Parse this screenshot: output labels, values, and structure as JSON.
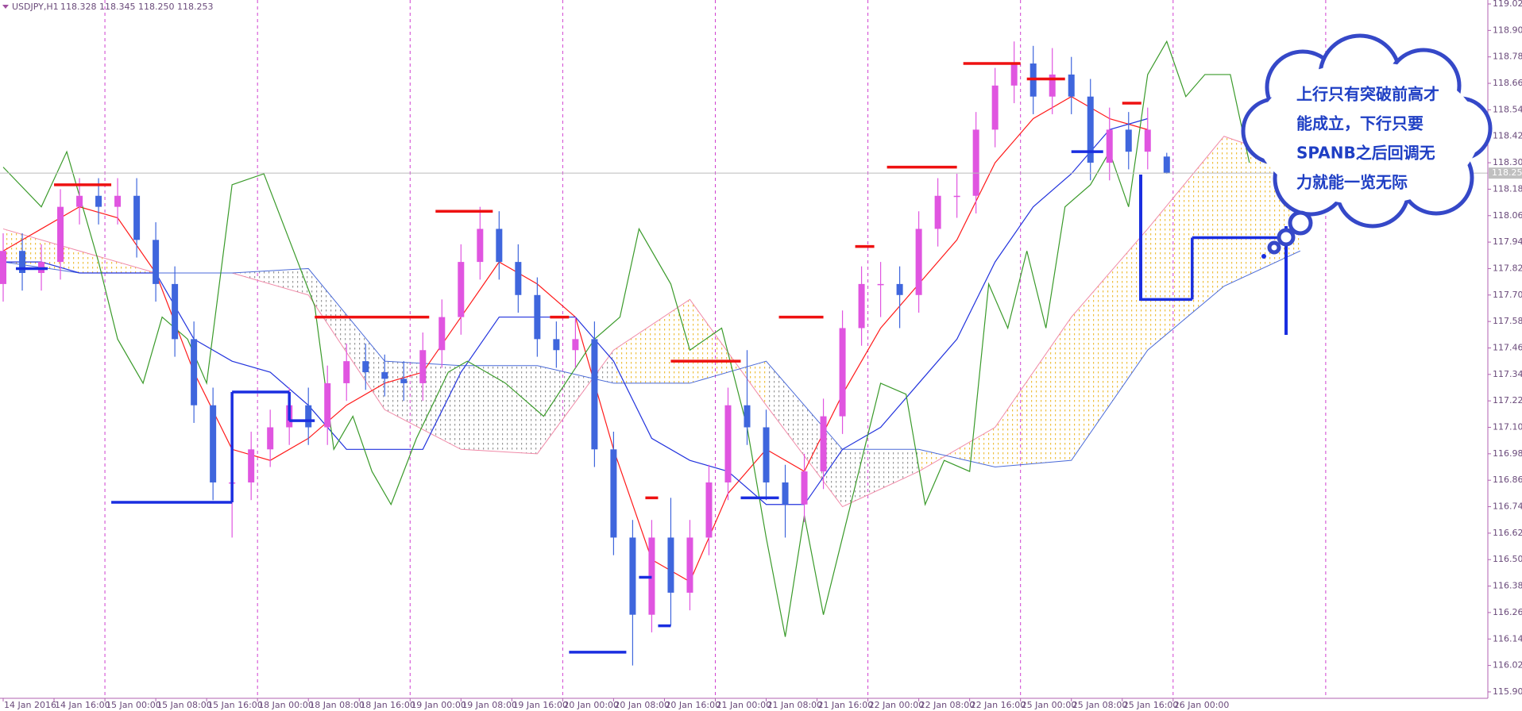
{
  "chart_data": {
    "type": "candlestick",
    "title": "USDJPY,H1",
    "ohlc_text": "118.328 118.345 118.250 118.253",
    "xlim": [
      -0.5,
      233.5
    ],
    "ylim": [
      115.871,
      119.038
    ],
    "x": [
      0,
      3,
      6,
      9,
      12,
      15,
      18,
      21,
      24,
      27,
      30,
      33,
      36,
      39,
      42,
      45,
      48,
      51,
      54,
      57,
      60,
      63,
      66,
      69,
      72,
      75,
      78,
      81,
      84,
      87,
      90,
      93,
      96,
      99,
      102,
      105,
      108,
      111,
      114,
      117,
      120,
      123,
      126,
      129,
      132,
      135,
      138,
      141,
      144,
      147,
      150,
      153,
      156,
      159,
      162,
      165,
      168,
      171,
      174,
      177,
      180,
      183
    ],
    "open": [
      117.75,
      117.9,
      117.8,
      117.85,
      118.1,
      118.15,
      118.1,
      118.15,
      117.95,
      117.75,
      117.5,
      117.2,
      116.85,
      116.85,
      117.0,
      117.1,
      117.2,
      117.1,
      117.3,
      117.4,
      117.35,
      117.32,
      117.3,
      117.45,
      117.6,
      117.85,
      118.0,
      117.85,
      117.7,
      117.5,
      117.45,
      117.5,
      117.0,
      116.6,
      116.25,
      116.6,
      116.35,
      116.6,
      116.85,
      117.2,
      117.1,
      116.85,
      116.75,
      116.9,
      117.15,
      117.55,
      117.75,
      117.75,
      117.7,
      118.0,
      118.15,
      118.15,
      118.45,
      118.65,
      118.75,
      118.6,
      118.7,
      118.6,
      118.3,
      118.45,
      118.35,
      118.328
    ],
    "high": [
      117.98,
      117.98,
      117.93,
      118.18,
      118.23,
      118.23,
      118.23,
      118.23,
      118.03,
      117.83,
      117.58,
      117.28,
      116.93,
      117.08,
      117.18,
      117.28,
      117.28,
      117.38,
      117.48,
      117.48,
      117.43,
      117.4,
      117.53,
      117.68,
      117.93,
      118.1,
      118.08,
      117.93,
      117.78,
      117.58,
      117.6,
      117.58,
      117.08,
      116.68,
      116.68,
      116.78,
      116.68,
      116.93,
      117.28,
      117.45,
      117.18,
      116.93,
      116.98,
      117.23,
      117.63,
      117.83,
      117.85,
      117.83,
      118.08,
      118.23,
      118.25,
      118.53,
      118.73,
      118.85,
      118.83,
      118.82,
      118.78,
      118.68,
      118.55,
      118.53,
      118.55,
      118.345
    ],
    "low": [
      117.67,
      117.72,
      117.72,
      117.77,
      118.02,
      118.02,
      118.02,
      117.87,
      117.67,
      117.42,
      117.12,
      116.77,
      116.6,
      116.77,
      116.92,
      117.02,
      117.02,
      117.02,
      117.22,
      117.27,
      117.24,
      117.22,
      117.22,
      117.37,
      117.52,
      117.77,
      117.77,
      117.62,
      117.42,
      117.37,
      117.37,
      116.92,
      116.52,
      116.02,
      116.17,
      116.2,
      116.27,
      116.52,
      116.77,
      117.02,
      116.77,
      116.6,
      116.67,
      116.82,
      117.07,
      117.47,
      117.6,
      117.55,
      117.62,
      117.92,
      118.05,
      118.07,
      118.37,
      118.57,
      118.52,
      118.52,
      118.52,
      118.22,
      118.22,
      118.27,
      118.27,
      118.25
    ],
    "close": [
      117.9,
      117.8,
      117.85,
      118.1,
      118.15,
      118.1,
      118.15,
      117.95,
      117.75,
      117.5,
      117.2,
      116.85,
      116.85,
      117.0,
      117.1,
      117.2,
      117.1,
      117.3,
      117.4,
      117.35,
      117.32,
      117.3,
      117.45,
      117.6,
      117.85,
      118.0,
      117.85,
      117.7,
      117.5,
      117.45,
      117.5,
      117.0,
      116.6,
      116.25,
      116.6,
      116.35,
      116.6,
      116.85,
      117.2,
      117.1,
      116.85,
      116.75,
      116.9,
      117.15,
      117.55,
      117.75,
      117.75,
      117.7,
      118.0,
      118.15,
      118.15,
      118.45,
      118.65,
      118.75,
      118.6,
      118.7,
      118.6,
      118.3,
      118.45,
      118.35,
      118.45,
      118.253
    ],
    "bull_color": "#e055e0",
    "bear_color": "#3f66dd",
    "lines": [
      {
        "color": "#ff1a1a",
        "x": [
          0,
          6,
          12,
          18,
          24,
          30,
          36,
          42,
          48,
          54,
          60,
          66,
          72,
          78,
          84,
          90,
          96,
          102,
          108,
          114,
          120,
          126,
          132,
          138,
          144,
          150,
          156,
          162,
          168,
          174,
          180
        ],
        "values": [
          117.9,
          118.0,
          118.1,
          118.05,
          117.8,
          117.35,
          117.0,
          116.95,
          117.05,
          117.2,
          117.3,
          117.35,
          117.6,
          117.85,
          117.75,
          117.6,
          117.0,
          116.5,
          116.4,
          116.8,
          117.0,
          116.9,
          117.25,
          117.55,
          117.75,
          117.95,
          118.3,
          118.5,
          118.6,
          118.5,
          118.45
        ]
      },
      {
        "color": "#2233dd",
        "x": [
          0,
          6,
          12,
          18,
          24,
          30,
          36,
          42,
          48,
          54,
          60,
          66,
          72,
          78,
          84,
          90,
          96,
          102,
          108,
          114,
          120,
          126,
          132,
          138,
          144,
          150,
          156,
          162,
          168,
          174,
          180
        ],
        "values": [
          117.85,
          117.85,
          117.8,
          117.8,
          117.8,
          117.5,
          117.4,
          117.35,
          117.2,
          117.0,
          117.0,
          117.0,
          117.35,
          117.6,
          117.6,
          117.6,
          117.4,
          117.05,
          116.95,
          116.9,
          116.75,
          116.75,
          117.0,
          117.1,
          117.3,
          117.5,
          117.85,
          118.1,
          118.25,
          118.45,
          118.5
        ]
      },
      {
        "color": "#3a9a2a",
        "x": [
          0,
          6,
          10,
          15,
          18,
          22,
          25,
          29,
          32,
          36,
          41,
          45,
          49,
          52,
          55,
          58,
          61,
          65,
          70,
          73,
          79,
          85,
          93,
          97,
          100,
          105,
          108,
          113,
          117,
          120,
          123,
          126,
          129,
          132,
          135,
          138,
          142,
          145,
          148,
          152,
          155,
          158,
          161,
          164,
          167,
          171,
          174,
          177,
          180,
          183,
          186,
          189,
          193,
          196
        ],
        "values": [
          118.28,
          118.1,
          118.35,
          117.85,
          117.5,
          117.3,
          117.6,
          117.5,
          117.3,
          118.2,
          118.25,
          117.95,
          117.65,
          117.0,
          117.15,
          116.9,
          116.75,
          117.05,
          117.35,
          117.4,
          117.3,
          117.15,
          117.5,
          117.6,
          118.0,
          117.75,
          117.45,
          117.55,
          117.1,
          116.6,
          116.15,
          116.7,
          116.25,
          116.6,
          116.95,
          117.3,
          117.25,
          116.75,
          116.95,
          116.9,
          117.75,
          117.55,
          117.9,
          117.55,
          118.1,
          118.2,
          118.35,
          118.1,
          118.7,
          118.85,
          118.6,
          118.7,
          118.7,
          118.3
        ]
      }
    ],
    "cloud": {
      "x": [
        0,
        12,
        24,
        36,
        48,
        60,
        72,
        84,
        96,
        108,
        120,
        132,
        144,
        156,
        168,
        180,
        192,
        204
      ],
      "span_a": [
        118.0,
        117.9,
        117.8,
        117.8,
        117.7,
        117.18,
        117.0,
        116.98,
        117.45,
        117.68,
        117.2,
        116.74,
        116.9,
        117.1,
        117.6,
        118.0,
        118.42,
        118.3
      ],
      "span_b": [
        117.85,
        117.8,
        117.8,
        117.8,
        117.82,
        117.4,
        117.38,
        117.38,
        117.3,
        117.3,
        117.4,
        117.0,
        117.0,
        116.92,
        116.95,
        117.45,
        117.74,
        117.9
      ],
      "span_a_color": "#f08aa8",
      "span_b_color": "#4a6ad8",
      "up_fill": "#f2cc55",
      "down_fill": "#9a9a9a"
    },
    "levels": [
      {
        "color": "#ee1111",
        "segments": [
          {
            "x": [
              8,
              17
            ],
            "value": 118.2
          },
          {
            "x": [
              49,
              67
            ],
            "value": 117.6
          },
          {
            "x": [
              68,
              77
            ],
            "value": 118.08
          },
          {
            "x": [
              86,
              89
            ],
            "value": 117.6
          },
          {
            "x": [
              101,
              103
            ],
            "value": 116.78
          },
          {
            "x": [
              105,
              116
            ],
            "value": 117.4
          },
          {
            "x": [
              122,
              129
            ],
            "value": 117.6
          },
          {
            "x": [
              134,
              137
            ],
            "value": 117.92
          },
          {
            "x": [
              139,
              150
            ],
            "value": 118.28
          },
          {
            "x": [
              151,
              160
            ],
            "value": 118.75
          },
          {
            "x": [
              161,
              167
            ],
            "value": 118.68
          },
          {
            "x": [
              176,
              179
            ],
            "value": 118.57
          }
        ]
      },
      {
        "color": "#1a2ee0",
        "segments": [
          {
            "x": [
              2,
              7
            ],
            "value": 117.82
          },
          {
            "x": [
              17,
              36
            ],
            "value": 116.76
          },
          {
            "x": [
              36,
              45
            ],
            "value": 117.26
          },
          {
            "x": [
              45,
              49
            ],
            "value": 117.13
          },
          {
            "x": [
              89,
              98
            ],
            "value": 116.08
          },
          {
            "x": [
              100,
              102
            ],
            "value": 116.42
          },
          {
            "x": [
              103,
              105
            ],
            "value": 116.2
          },
          {
            "x": [
              116,
              122
            ],
            "value": 116.78
          },
          {
            "x": [
              168,
              173
            ],
            "value": 118.35
          },
          {
            "x": [
              179,
              187
            ],
            "value": 117.68
          },
          {
            "x": [
              187,
              202
            ],
            "value": 117.96
          }
        ]
      }
    ],
    "price_line": 118.253,
    "period_separators": [
      16,
      40,
      64,
      88,
      112,
      136,
      160,
      184,
      208
    ],
    "xticks": [
      {
        "value": 0,
        "label": "14 Jan 2016"
      },
      {
        "value": 8,
        "label": "14 Jan 16:00"
      },
      {
        "value": 16,
        "label": "15 Jan 00:00"
      },
      {
        "value": 24,
        "label": "15 Jan 08:00"
      },
      {
        "value": 32,
        "label": "15 Jan 16:00"
      },
      {
        "value": 40,
        "label": "18 Jan 00:00"
      },
      {
        "value": 48,
        "label": "18 Jan 08:00"
      },
      {
        "value": 56,
        "label": "18 Jan 16:00"
      },
      {
        "value": 64,
        "label": "19 Jan 00:00"
      },
      {
        "value": 72,
        "label": "19 Jan 08:00"
      },
      {
        "value": 80,
        "label": "19 Jan 16:00"
      },
      {
        "value": 88,
        "label": "20 Jan 00:00"
      },
      {
        "value": 96,
        "label": "20 Jan 08:00"
      },
      {
        "value": 104,
        "label": "20 Jan 16:00"
      },
      {
        "value": 112,
        "label": "21 Jan 00:00"
      },
      {
        "value": 120,
        "label": "21 Jan 08:00"
      },
      {
        "value": 128,
        "label": "21 Jan 16:00"
      },
      {
        "value": 136,
        "label": "22 Jan 00:00"
      },
      {
        "value": 144,
        "label": "22 Jan 08:00"
      },
      {
        "value": 152,
        "label": "22 Jan 16:00"
      },
      {
        "value": 160,
        "label": "25 Jan 00:00"
      },
      {
        "value": 168,
        "label": "25 Jan 08:00"
      },
      {
        "value": 176,
        "label": "25 Jan 16:00"
      },
      {
        "value": 184,
        "label": "26 Jan 00:00"
      }
    ],
    "yticks": [
      {
        "value": 115.9,
        "label": "115.900"
      },
      {
        "value": 116.02,
        "label": "116.020"
      },
      {
        "value": 116.14,
        "label": "116.140"
      },
      {
        "value": 116.26,
        "label": "116.260"
      },
      {
        "value": 116.38,
        "label": "116.380"
      },
      {
        "value": 116.5,
        "label": "116.500"
      },
      {
        "value": 116.62,
        "label": "116.620"
      },
      {
        "value": 116.74,
        "label": "116.740"
      },
      {
        "value": 116.86,
        "label": "116.860"
      },
      {
        "value": 116.98,
        "label": "116.980"
      },
      {
        "value": 117.1,
        "label": "117.100"
      },
      {
        "value": 117.22,
        "label": "117.220"
      },
      {
        "value": 117.34,
        "label": "117.340"
      },
      {
        "value": 117.46,
        "label": "117.460"
      },
      {
        "value": 117.58,
        "label": "117.580"
      },
      {
        "value": 117.7,
        "label": "117.700"
      },
      {
        "value": 117.82,
        "label": "117.820"
      },
      {
        "value": 117.94,
        "label": "117.940"
      },
      {
        "value": 118.06,
        "label": "118.060"
      },
      {
        "value": 118.18,
        "label": "118.180"
      },
      {
        "value": 118.3,
        "label": "118.300"
      },
      {
        "value": 118.42,
        "label": "118.420"
      },
      {
        "value": 118.54,
        "label": "118.540"
      },
      {
        "value": 118.66,
        "label": "118.660"
      },
      {
        "value": 118.78,
        "label": "118.780"
      },
      {
        "value": 118.9,
        "label": "118.900"
      },
      {
        "value": 119.02,
        "label": "119.020"
      }
    ],
    "annotation": {
      "lines": [
        "上行只有突破前高才",
        "能成立，下行只要",
        "SPANB之后回调无",
        "力就能一览无际"
      ]
    }
  }
}
